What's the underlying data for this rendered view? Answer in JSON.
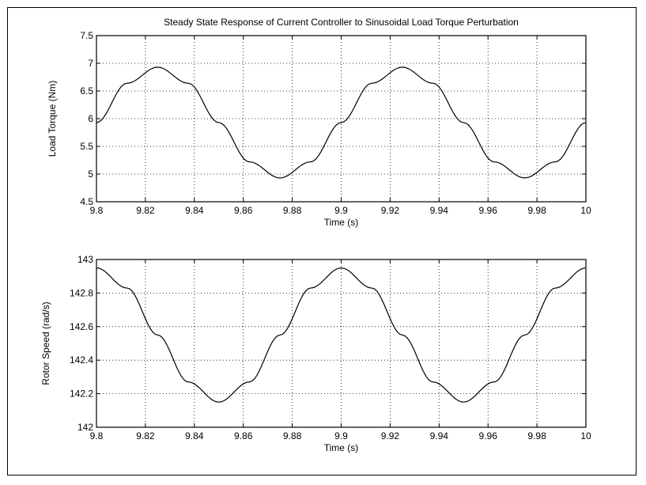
{
  "chart_data": [
    {
      "type": "line",
      "title": "Steady State Response of Current Controller to Sinusoidal Load Torque Perturbation",
      "xlabel": "Time (s)",
      "ylabel": "Load Torque (Nm)",
      "xlim": [
        9.8,
        10
      ],
      "ylim": [
        4.5,
        7.5
      ],
      "xticks": [
        "9.8",
        "9.82",
        "9.84",
        "9.86",
        "9.88",
        "9.9",
        "9.92",
        "9.94",
        "9.96",
        "9.98",
        "10"
      ],
      "yticks": [
        "4.5",
        "5",
        "5.5",
        "6",
        "6.5",
        "7",
        "7.5"
      ],
      "grid": true,
      "series": [
        {
          "color": "#000000",
          "x": [
            9.8,
            9.8125,
            9.825,
            9.8375,
            9.85,
            9.8625,
            9.875,
            9.8875,
            9.9,
            9.9125,
            9.925,
            9.9375,
            9.95,
            9.9625,
            9.975,
            9.9875,
            10.0
          ],
          "y": [
            5.93,
            6.64,
            6.93,
            6.64,
            5.93,
            5.22,
            4.93,
            5.22,
            5.93,
            6.64,
            6.93,
            6.64,
            5.93,
            5.22,
            4.93,
            5.22,
            5.93
          ]
        }
      ]
    },
    {
      "type": "line",
      "title": "",
      "xlabel": "Time (s)",
      "ylabel": "Rotor Speed (rad/s)",
      "xlim": [
        9.8,
        10
      ],
      "ylim": [
        142,
        143
      ],
      "xticks": [
        "9.8",
        "9.82",
        "9.84",
        "9.86",
        "9.88",
        "9.9",
        "9.92",
        "9.94",
        "9.96",
        "9.98",
        "10"
      ],
      "yticks": [
        "142",
        "142.2",
        "142.4",
        "142.6",
        "142.8",
        "143"
      ],
      "grid": true,
      "series": [
        {
          "color": "#000000",
          "x": [
            9.8,
            9.8125,
            9.825,
            9.8375,
            9.85,
            9.8625,
            9.875,
            9.8875,
            9.9,
            9.9125,
            9.925,
            9.9375,
            9.95,
            9.9625,
            9.975,
            9.9875,
            10.0
          ],
          "y": [
            142.95,
            142.83,
            142.55,
            142.27,
            142.15,
            142.27,
            142.55,
            142.83,
            142.95,
            142.83,
            142.55,
            142.27,
            142.15,
            142.27,
            142.55,
            142.83,
            142.95
          ]
        }
      ]
    }
  ]
}
